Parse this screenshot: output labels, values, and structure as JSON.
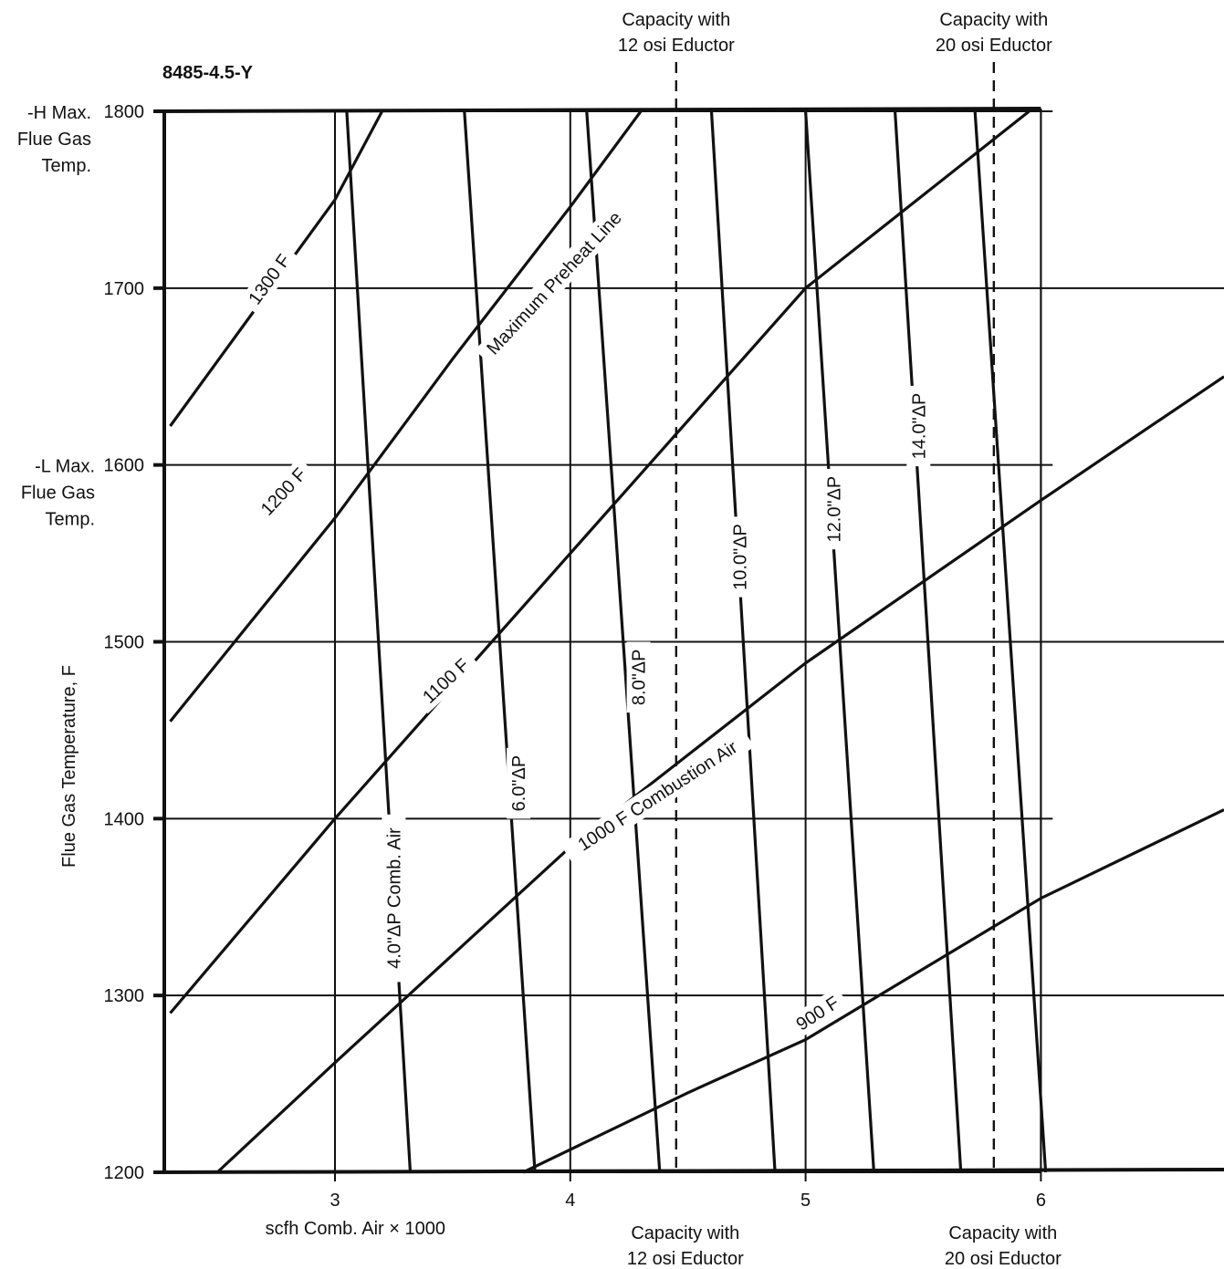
{
  "chart_data": {
    "type": "line",
    "figure_id": "8485-4.5-Y",
    "xlabel": "scfh Comb. Air × 1000",
    "ylabel": "Flue Gas Temperature, F",
    "xlim": [
      2.3,
      6.8
    ],
    "ylim": [
      1200,
      1800
    ],
    "x_ticks": [
      {
        "value": 3,
        "label": "3"
      },
      {
        "value": 4,
        "label": "4"
      },
      {
        "value": 5,
        "label": "5"
      },
      {
        "value": 6,
        "label": "6"
      }
    ],
    "y_ticks": [
      {
        "value": 1200,
        "label": "1200"
      },
      {
        "value": 1300,
        "label": "1300"
      },
      {
        "value": 1400,
        "label": "1400"
      },
      {
        "value": 1500,
        "label": "1500"
      },
      {
        "value": 1600,
        "label": "1600"
      },
      {
        "value": 1700,
        "label": "1700"
      },
      {
        "value": 1800,
        "label": "1800"
      }
    ],
    "y_annotations": [
      {
        "value": 1800,
        "lines": [
          "-H Max.",
          "Flue Gas",
          "Temp."
        ]
      },
      {
        "value": 1600,
        "lines": [
          "-L Max.",
          "Flue Gas",
          "Temp."
        ]
      }
    ],
    "grid": true,
    "horizontal_grid_extent_x": [
      6.0,
      6.8,
      6.05,
      6.9,
      6.05,
      6.9,
      6.05
    ],
    "capacity_lines": [
      {
        "x": 4.45,
        "top": [
          "Capacity with",
          "12 osi Eductor"
        ],
        "bottom": [
          "Capacity with",
          "12 osi Eductor"
        ]
      },
      {
        "x": 5.8,
        "top": [
          "Capacity with",
          "20 osi Eductor"
        ],
        "bottom": [
          "Capacity with",
          "20 osi Eductor"
        ]
      }
    ],
    "temperature_series": [
      {
        "name": "1300 F",
        "points": [
          [
            2.3,
            1622
          ],
          [
            3.0,
            1750
          ],
          [
            3.2,
            1800
          ]
        ],
        "label": "1300 F",
        "label_at": [
          2.72,
          1705
        ],
        "label_angle": -54
      },
      {
        "name": "1200 F",
        "points": [
          [
            2.3,
            1455
          ],
          [
            3.0,
            1570
          ],
          [
            3.5,
            1660
          ],
          [
            4.0,
            1746
          ],
          [
            4.3,
            1800
          ]
        ],
        "label": "1200 F",
        "label_at": [
          2.78,
          1585
        ],
        "label_angle": -47
      },
      {
        "name": "1100 F",
        "points": [
          [
            2.3,
            1290
          ],
          [
            3.0,
            1400
          ],
          [
            4.0,
            1550
          ],
          [
            5.0,
            1700
          ],
          [
            5.95,
            1800
          ]
        ],
        "label": "1100 F",
        "label_at": [
          3.47,
          1478
        ],
        "label_angle": -43
      },
      {
        "name": "1000 F Combustion Air",
        "points": [
          [
            2.5,
            1200
          ],
          [
            3.0,
            1262
          ],
          [
            4.0,
            1384
          ],
          [
            5.0,
            1488
          ],
          [
            6.0,
            1580
          ],
          [
            6.8,
            1650
          ]
        ],
        "label": "1000 F Combustion Air",
        "label_at": [
          4.37,
          1413
        ],
        "label_angle": -33
      },
      {
        "name": "900 F",
        "points": [
          [
            3.8,
            1200
          ],
          [
            4.5,
            1245
          ],
          [
            5.0,
            1275
          ],
          [
            6.0,
            1355
          ],
          [
            6.8,
            1405
          ]
        ],
        "label": "900 F",
        "label_at": [
          5.05,
          1290
        ],
        "label_angle": -33
      }
    ],
    "max_preheat_line": {
      "name": "Maximum Preheat Line",
      "label_at": [
        3.93,
        1703
      ],
      "label_angle": -47
    },
    "dp_series": [
      {
        "name": "4.0\"ΔP Comb. Air",
        "points": [
          [
            3.05,
            1800
          ],
          [
            3.32,
            1200
          ]
        ],
        "label": "4.0\"ΔP Comb. Air",
        "label_at": [
          3.25,
          1355
        ]
      },
      {
        "name": "6.0\"ΔP",
        "points": [
          [
            3.55,
            1800
          ],
          [
            3.85,
            1200
          ]
        ],
        "label": "6.0\"ΔP",
        "label_at": [
          3.78,
          1420
        ]
      },
      {
        "name": "8.0\"ΔP",
        "points": [
          [
            4.07,
            1800
          ],
          [
            4.38,
            1200
          ]
        ],
        "label": "8.0\"ΔP",
        "label_at": [
          4.29,
          1480
        ]
      },
      {
        "name": "10.0\"ΔP",
        "points": [
          [
            4.6,
            1800
          ],
          [
            4.87,
            1200
          ]
        ],
        "label": "10.0\"ΔP",
        "label_at": [
          4.72,
          1548
        ]
      },
      {
        "name": "12.0\"ΔP",
        "points": [
          [
            5.0,
            1800
          ],
          [
            5.29,
            1200
          ]
        ],
        "label": "12.0\"ΔP",
        "label_at": [
          5.12,
          1575
        ]
      },
      {
        "name": "14.0\"ΔP",
        "points": [
          [
            5.38,
            1800
          ],
          [
            5.66,
            1200
          ]
        ],
        "label": "14.0\"ΔP",
        "label_at": [
          5.48,
          1622
        ]
      },
      {
        "name": "20 osi",
        "points": [
          [
            5.72,
            1800
          ],
          [
            6.02,
            1200
          ]
        ],
        "label": "",
        "label_at": null
      }
    ]
  }
}
